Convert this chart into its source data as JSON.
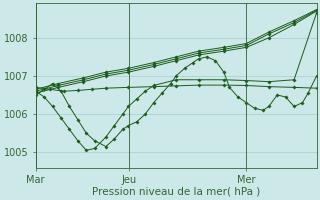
{
  "background_color": "#cde8e8",
  "grid_color": "#aacccc",
  "line_color": "#1a5c1a",
  "marker_color": "#1a5c1a",
  "xlabel": "Pression niveau de la mer( hPa )",
  "xtick_labels": [
    "Mar",
    "Jeu",
    "Mer"
  ],
  "xtick_positions": [
    0,
    0.333,
    0.75
  ],
  "ylim": [
    1004.6,
    1008.9
  ],
  "yticks": [
    1005,
    1006,
    1007,
    1008
  ],
  "xlabel_fontsize": 7.5,
  "tick_fontsize": 7,
  "series": [
    {
      "x": [
        0.0,
        0.08,
        0.17,
        0.25,
        0.33,
        0.42,
        0.5,
        0.58,
        0.67,
        0.75,
        0.83,
        0.92,
        1.0
      ],
      "y": [
        1006.55,
        1006.7,
        1006.85,
        1007.0,
        1007.1,
        1007.25,
        1007.4,
        1007.55,
        1007.65,
        1007.75,
        1008.0,
        1008.35,
        1008.7
      ]
    },
    {
      "x": [
        0.0,
        0.08,
        0.17,
        0.25,
        0.33,
        0.42,
        0.5,
        0.58,
        0.67,
        0.75,
        0.83,
        0.92,
        1.0
      ],
      "y": [
        1006.6,
        1006.75,
        1006.9,
        1007.05,
        1007.15,
        1007.3,
        1007.45,
        1007.6,
        1007.7,
        1007.8,
        1008.1,
        1008.4,
        1008.72
      ]
    },
    {
      "x": [
        0.0,
        0.08,
        0.17,
        0.25,
        0.33,
        0.42,
        0.5,
        0.58,
        0.67,
        0.75,
        0.83,
        0.92,
        1.0
      ],
      "y": [
        1006.65,
        1006.8,
        1006.95,
        1007.1,
        1007.2,
        1007.35,
        1007.5,
        1007.65,
        1007.75,
        1007.85,
        1008.15,
        1008.45,
        1008.74
      ]
    },
    {
      "x": [
        0.0,
        0.05,
        0.1,
        0.15,
        0.2,
        0.25,
        0.33,
        0.42,
        0.5,
        0.58,
        0.67,
        0.75,
        0.83,
        0.92,
        1.0
      ],
      "y": [
        1006.7,
        1006.65,
        1006.6,
        1006.62,
        1006.65,
        1006.68,
        1006.7,
        1006.72,
        1006.74,
        1006.76,
        1006.76,
        1006.75,
        1006.72,
        1006.7,
        1006.68
      ]
    },
    {
      "x": [
        0.0,
        0.03,
        0.06,
        0.09,
        0.12,
        0.15,
        0.18,
        0.21,
        0.25,
        0.28,
        0.31,
        0.33,
        0.36,
        0.39,
        0.42,
        0.45,
        0.48,
        0.5,
        0.53,
        0.56,
        0.58,
        0.61,
        0.64,
        0.67,
        0.69,
        0.72,
        0.75,
        0.78,
        0.81,
        0.83,
        0.86,
        0.89,
        0.92,
        0.95,
        0.97,
        1.0
      ],
      "y": [
        1006.5,
        1006.65,
        1006.8,
        1006.6,
        1006.2,
        1005.85,
        1005.5,
        1005.3,
        1005.15,
        1005.35,
        1005.6,
        1005.7,
        1005.8,
        1006.0,
        1006.3,
        1006.55,
        1006.8,
        1007.0,
        1007.2,
        1007.35,
        1007.45,
        1007.5,
        1007.4,
        1007.1,
        1006.7,
        1006.45,
        1006.3,
        1006.15,
        1006.1,
        1006.2,
        1006.5,
        1006.45,
        1006.2,
        1006.3,
        1006.55,
        1007.0
      ]
    },
    {
      "x": [
        0.0,
        0.03,
        0.06,
        0.09,
        0.12,
        0.15,
        0.18,
        0.21,
        0.25,
        0.28,
        0.31,
        0.33,
        0.36,
        0.39,
        0.42,
        0.5,
        0.58,
        0.67,
        0.75,
        0.83,
        0.92,
        1.0
      ],
      "y": [
        1006.6,
        1006.45,
        1006.2,
        1005.9,
        1005.6,
        1005.3,
        1005.05,
        1005.1,
        1005.4,
        1005.7,
        1006.0,
        1006.2,
        1006.4,
        1006.6,
        1006.75,
        1006.9,
        1006.9,
        1006.9,
        1006.88,
        1006.85,
        1006.9,
        1008.65
      ]
    }
  ],
  "vline_positions": [
    0.0,
    0.333,
    0.75
  ],
  "vline_color": "#336633",
  "axis_color": "#336633",
  "tick_color": "#336633"
}
